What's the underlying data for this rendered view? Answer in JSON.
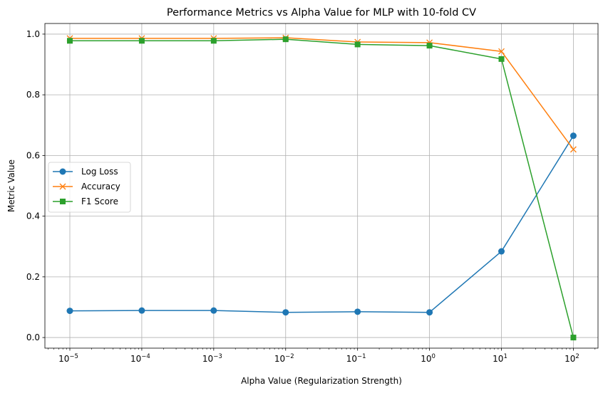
{
  "chart_data": {
    "type": "line",
    "title": "Performance Metrics vs Alpha Value for MLP with 10-fold CV",
    "xlabel": "Alpha Value (Regularization Strength)",
    "ylabel": "Metric Value",
    "xscale": "log",
    "xlim": [
      4.5e-06,
      220
    ],
    "ylim": [
      -0.035,
      1.035
    ],
    "grid": true,
    "legend_position": "center-left",
    "x": [
      1e-05,
      0.0001,
      0.001,
      0.01,
      0.1,
      1,
      10,
      100
    ],
    "x_tick_labels": [
      {
        "base": "10",
        "exp": "−5"
      },
      {
        "base": "10",
        "exp": "−4"
      },
      {
        "base": "10",
        "exp": "−3"
      },
      {
        "base": "10",
        "exp": "−2"
      },
      {
        "base": "10",
        "exp": "−1"
      },
      {
        "base": "10",
        "exp": "0"
      },
      {
        "base": "10",
        "exp": "1"
      },
      {
        "base": "10",
        "exp": "2"
      }
    ],
    "y_ticks": [
      0.0,
      0.2,
      0.4,
      0.6,
      0.8,
      1.0
    ],
    "y_tick_labels": [
      "0.0",
      "0.2",
      "0.4",
      "0.6",
      "0.8",
      "1.0"
    ],
    "series": [
      {
        "name": "Log Loss",
        "marker": "circle",
        "color": "#1f77b4",
        "values": [
          0.088,
          0.089,
          0.089,
          0.083,
          0.085,
          0.083,
          0.284,
          0.665
        ]
      },
      {
        "name": "Accuracy",
        "marker": "x",
        "color": "#ff7f0e",
        "values": [
          0.986,
          0.986,
          0.986,
          0.988,
          0.974,
          0.972,
          0.943,
          0.62
        ]
      },
      {
        "name": "F1 Score",
        "marker": "square",
        "color": "#2ca02c",
        "values": [
          0.978,
          0.978,
          0.978,
          0.983,
          0.966,
          0.962,
          0.918,
          0.0
        ]
      }
    ]
  }
}
